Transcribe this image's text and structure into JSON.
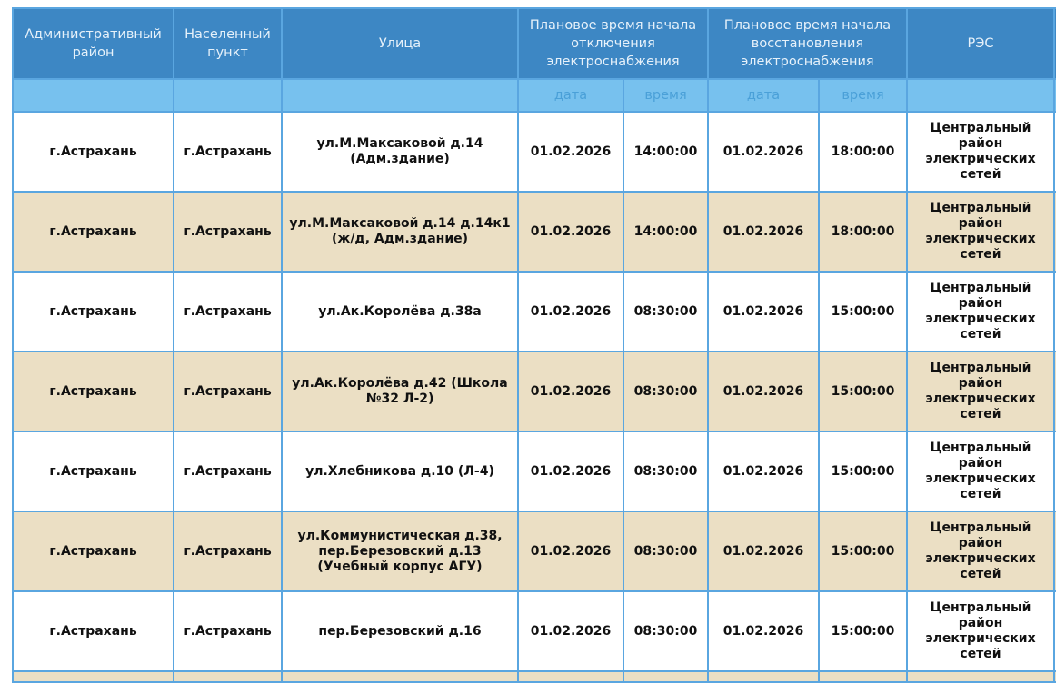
{
  "header": {
    "district": "Административный район",
    "settlement": "Населенный пункт",
    "street": "Улица",
    "off_start": "Плановое время начала отключения электроснабжения",
    "restore_start": "Плановое время начала восстановления электроснабжения",
    "res": "РЭС",
    "sub": {
      "date": "дата",
      "time": "время"
    }
  },
  "colors": {
    "header": "#3d87c4",
    "subheader": "#77c1ee",
    "border": "#5aa6e0",
    "alt_row": "#ebdfc4"
  },
  "rows": [
    {
      "district": "г.Астрахань",
      "settlement": "г.Астрахань",
      "street": "ул.М.Максаковой д.14 (Адм.здание)",
      "off_date": "01.02.2026",
      "off_time": "14:00:00",
      "on_date": "01.02.2026",
      "on_time": "18:00:00",
      "res": "Центральный район электрических сетей"
    },
    {
      "district": "г.Астрахань",
      "settlement": "г.Астрахань",
      "street": "ул.М.Максаковой д.14 д.14к1 (ж/д, Адм.здание)",
      "off_date": "01.02.2026",
      "off_time": "14:00:00",
      "on_date": "01.02.2026",
      "on_time": "18:00:00",
      "res": "Центральный район электрических сетей"
    },
    {
      "district": "г.Астрахань",
      "settlement": "г.Астрахань",
      "street": "ул.Ак.Королёва д.38а",
      "off_date": "01.02.2026",
      "off_time": "08:30:00",
      "on_date": "01.02.2026",
      "on_time": "15:00:00",
      "res": "Центральный район электрических сетей"
    },
    {
      "district": "г.Астрахань",
      "settlement": "г.Астрахань",
      "street": "ул.Ак.Королёва д.42 (Школа №32 Л-2)",
      "off_date": "01.02.2026",
      "off_time": "08:30:00",
      "on_date": "01.02.2026",
      "on_time": "15:00:00",
      "res": "Центральный район электрических сетей"
    },
    {
      "district": "г.Астрахань",
      "settlement": "г.Астрахань",
      "street": "ул.Хлебникова д.10 (Л-4)",
      "off_date": "01.02.2026",
      "off_time": "08:30:00",
      "on_date": "01.02.2026",
      "on_time": "15:00:00",
      "res": "Центральный район электрических сетей"
    },
    {
      "district": "г.Астрахань",
      "settlement": "г.Астрахань",
      "street": "ул.Коммунистическая д.38, пер.Березовский д.13 (Учебный корпус АГУ)",
      "off_date": "01.02.2026",
      "off_time": "08:30:00",
      "on_date": "01.02.2026",
      "on_time": "15:00:00",
      "res": "Центральный район электрических сетей"
    },
    {
      "district": "г.Астрахань",
      "settlement": "г.Астрахань",
      "street": "пер.Березовский д.16",
      "off_date": "01.02.2026",
      "off_time": "08:30:00",
      "on_date": "01.02.2026",
      "on_time": "15:00:00",
      "res": "Центральный район электрических сетей"
    }
  ]
}
